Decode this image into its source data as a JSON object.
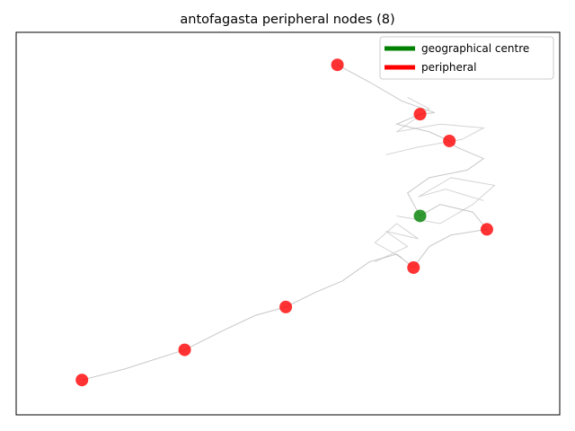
{
  "chart_data": {
    "type": "scatter",
    "title": "antofagasta peripheral nodes (8)",
    "xlabel": "",
    "ylabel": "",
    "axes_ticks": "none",
    "grid": false,
    "legend_position": "top-right",
    "xlim": [
      0,
      100
    ],
    "ylim": [
      0,
      100
    ],
    "legend": [
      {
        "label": "geographical centre",
        "color": "#008000"
      },
      {
        "label": "peripheral",
        "color": "#ff0000"
      }
    ],
    "series": [
      {
        "name": "geographical centre",
        "color": "#008000",
        "points": [
          {
            "x": 74.3,
            "y": 52.0
          }
        ]
      },
      {
        "name": "peripheral",
        "color": "#ff0000",
        "points": [
          {
            "x": 59.1,
            "y": 91.5
          },
          {
            "x": 74.3,
            "y": 78.6
          },
          {
            "x": 79.7,
            "y": 71.6
          },
          {
            "x": 86.6,
            "y": 48.5
          },
          {
            "x": 73.1,
            "y": 38.5
          },
          {
            "x": 49.6,
            "y": 28.2
          },
          {
            "x": 31.0,
            "y": 17.0
          },
          {
            "x": 12.1,
            "y": 9.1
          }
        ]
      }
    ],
    "network_edges_color": "#b0b0b0"
  }
}
